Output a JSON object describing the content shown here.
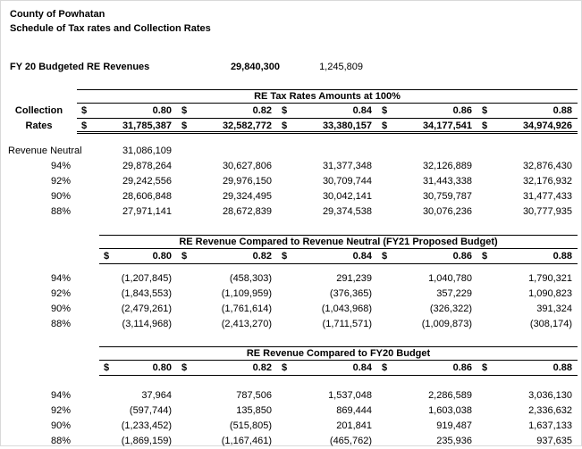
{
  "currency": "$",
  "header": {
    "title": "County of Powhatan",
    "subtitle": "Schedule of Tax rates and Collection Rates"
  },
  "budget": {
    "label": "FY 20 Budgeted RE Revenues",
    "value1": "29,840,300",
    "value2": "1,245,809"
  },
  "rates": [
    "0.80",
    "0.82",
    "0.84",
    "0.86",
    "0.88"
  ],
  "section1": {
    "title": "RE Tax Rates Amounts at 100%",
    "collection_label": "Collection",
    "rates_label": "Rates",
    "amounts": [
      "31,785,387",
      "32,582,772",
      "33,380,157",
      "34,177,541",
      "34,974,926"
    ],
    "revenue_neutral": {
      "label": "Revenue Neutral",
      "value": "31,086,109"
    },
    "rows": [
      {
        "label": "94%",
        "values": [
          "29,878,264",
          "30,627,806",
          "31,377,348",
          "32,126,889",
          "32,876,430"
        ]
      },
      {
        "label": "92%",
        "values": [
          "29,242,556",
          "29,976,150",
          "30,709,744",
          "31,443,338",
          "32,176,932"
        ]
      },
      {
        "label": "90%",
        "values": [
          "28,606,848",
          "29,324,495",
          "30,042,141",
          "30,759,787",
          "31,477,433"
        ]
      },
      {
        "label": "88%",
        "values": [
          "27,971,141",
          "28,672,839",
          "29,374,538",
          "30,076,236",
          "30,777,935"
        ]
      }
    ]
  },
  "section2": {
    "title": "RE Revenue Compared to Revenue Neutral (FY21 Proposed Budget)",
    "rows": [
      {
        "label": "94%",
        "values": [
          "(1,207,845)",
          "(458,303)",
          "291,239",
          "1,040,780",
          "1,790,321"
        ]
      },
      {
        "label": "92%",
        "values": [
          "(1,843,553)",
          "(1,109,959)",
          "(376,365)",
          "357,229",
          "1,090,823"
        ]
      },
      {
        "label": "90%",
        "values": [
          "(2,479,261)",
          "(1,761,614)",
          "(1,043,968)",
          "(326,322)",
          "391,324"
        ]
      },
      {
        "label": "88%",
        "values": [
          "(3,114,968)",
          "(2,413,270)",
          "(1,711,571)",
          "(1,009,873)",
          "(308,174)"
        ]
      }
    ]
  },
  "section3": {
    "title": "RE Revenue Compared to FY20 Budget",
    "rows": [
      {
        "label": "94%",
        "values": [
          "37,964",
          "787,506",
          "1,537,048",
          "2,286,589",
          "3,036,130"
        ]
      },
      {
        "label": "92%",
        "values": [
          "(597,744)",
          "135,850",
          "869,444",
          "1,603,038",
          "2,336,632"
        ]
      },
      {
        "label": "90%",
        "values": [
          "(1,233,452)",
          "(515,805)",
          "201,841",
          "919,487",
          "1,637,133"
        ]
      },
      {
        "label": "88%",
        "values": [
          "(1,869,159)",
          "(1,167,461)",
          "(465,762)",
          "235,936",
          "937,635"
        ]
      }
    ]
  }
}
